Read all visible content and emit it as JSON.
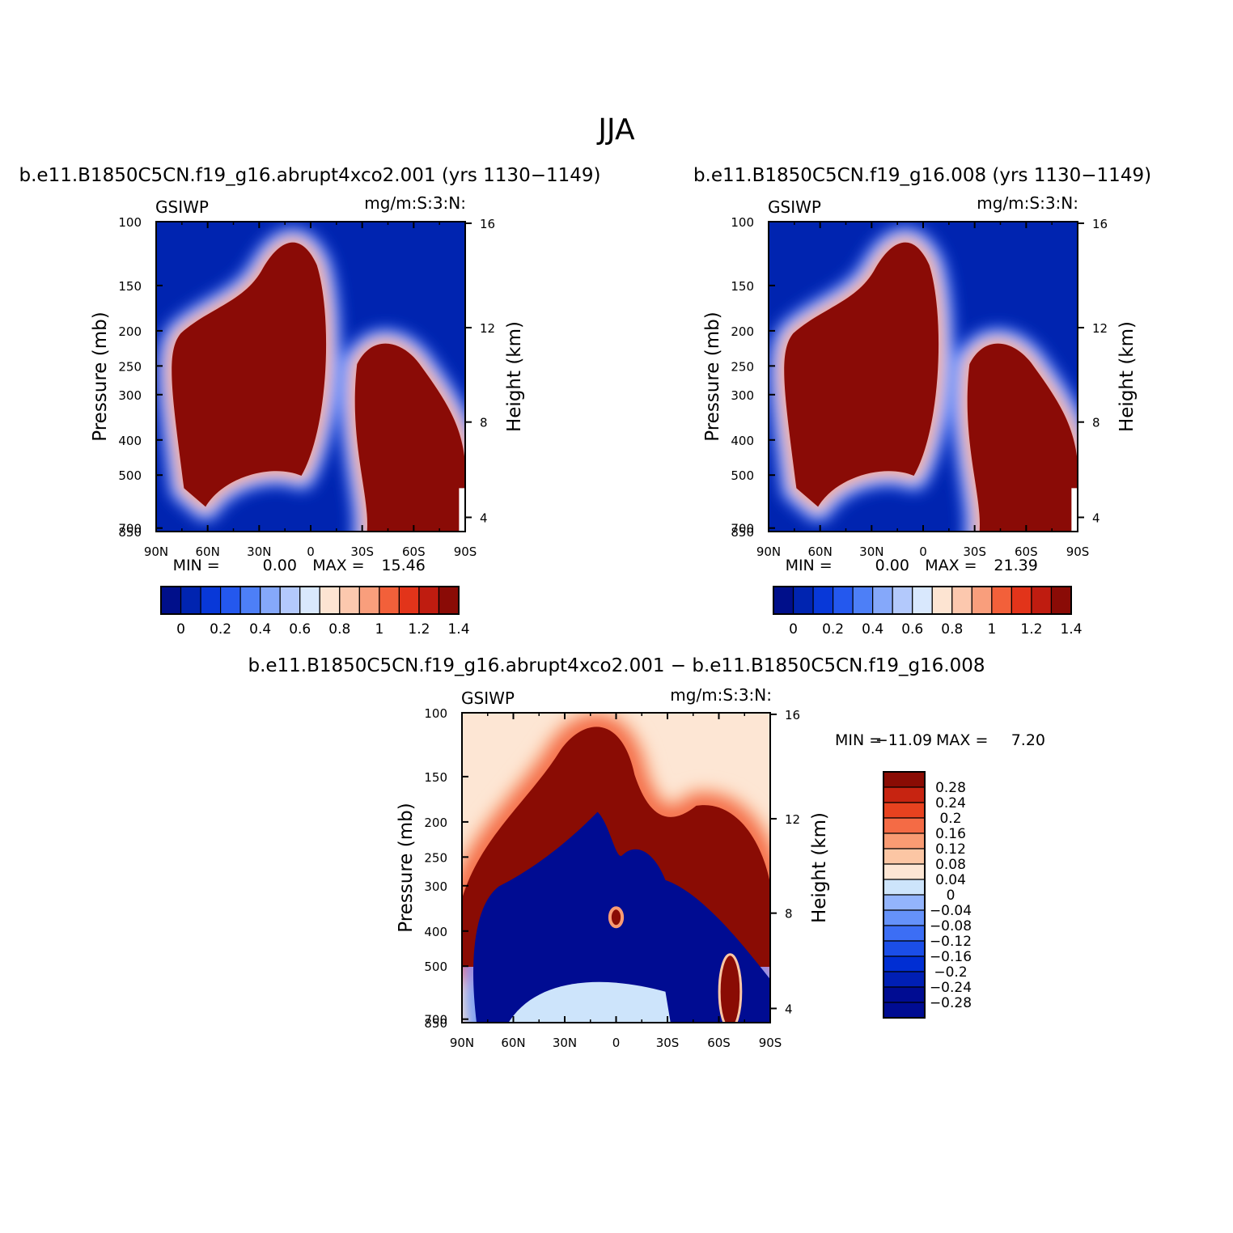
{
  "figure": {
    "main_title": "JJA",
    "variable": "GSIWP",
    "units": "mg/m:S:3:N:",
    "pressure_axis_label": "Pressure (mb)",
    "height_axis_label": "Height (km)",
    "min_label": "MIN =",
    "max_label": "MAX ="
  },
  "colors": {
    "abs_palette": [
      "#000f8a",
      "#0024b0",
      "#0838d8",
      "#2458ee",
      "#4d7ff7",
      "#85a8fa",
      "#b3c9fc",
      "#d9e8fd",
      "#fde4d2",
      "#fcc8ae",
      "#f99e7c",
      "#f2603a",
      "#e2341a",
      "#bf1c10",
      "#8a0b06"
    ],
    "diff_palette": [
      "#000c92",
      "#001fb4",
      "#002ed3",
      "#1b4ee8",
      "#3c6ef5",
      "#6592fa",
      "#93b4fc",
      "#cde4fb",
      "#fde6d4",
      "#fcc6a4",
      "#f99b73",
      "#f46b45",
      "#e8421f",
      "#c72411",
      "#8a0c04"
    ]
  },
  "chart_data": [
    {
      "type": "heatmap",
      "title": "b.e11.B1850C5CN.f19_g16.abrupt4xco2.001 (yrs 1130−1149)",
      "x_ticks": [
        "90N",
        "60N",
        "30N",
        "0",
        "30S",
        "60S",
        "90S"
      ],
      "x_range": [
        90,
        -90
      ],
      "y_ticks": [
        100,
        150,
        200,
        250,
        300,
        400,
        500,
        700,
        850
      ],
      "y_range": [
        100,
        1000
      ],
      "y_scale": "log",
      "right_axis_ticks": [
        16,
        12,
        8,
        4
      ],
      "min": "0.00",
      "max": "15.46",
      "colorbar_levels": [
        "0",
        "0.2",
        "0.4",
        "0.6",
        "0.8",
        "1",
        "1.2",
        "1.4"
      ],
      "colorbar_orientation": "horizontal"
    },
    {
      "type": "heatmap",
      "title": "b.e11.B1850C5CN.f19_g16.008 (yrs 1130−1149)",
      "x_ticks": [
        "90N",
        "60N",
        "30N",
        "0",
        "30S",
        "60S",
        "90S"
      ],
      "x_range": [
        90,
        -90
      ],
      "y_ticks": [
        100,
        150,
        200,
        250,
        300,
        400,
        500,
        700,
        850
      ],
      "y_range": [
        100,
        1000
      ],
      "y_scale": "log",
      "right_axis_ticks": [
        16,
        12,
        8,
        4
      ],
      "min": "0.00",
      "max": "21.39",
      "colorbar_levels": [
        "0",
        "0.2",
        "0.4",
        "0.6",
        "0.8",
        "1",
        "1.2",
        "1.4"
      ],
      "colorbar_orientation": "horizontal"
    },
    {
      "type": "heatmap",
      "title": "b.e11.B1850C5CN.f19_g16.abrupt4xco2.001 − b.e11.B1850C5CN.f19_g16.008",
      "x_ticks": [
        "90N",
        "60N",
        "30N",
        "0",
        "30S",
        "60S",
        "90S"
      ],
      "x_range": [
        90,
        -90
      ],
      "y_ticks": [
        100,
        150,
        200,
        250,
        300,
        400,
        500,
        700,
        850
      ],
      "y_range": [
        100,
        1000
      ],
      "y_scale": "log",
      "right_axis_ticks": [
        16,
        12,
        8,
        4
      ],
      "min": "−11.09",
      "max": "7.20",
      "colorbar_levels": [
        "0.28",
        "0.24",
        "0.2",
        "0.16",
        "0.12",
        "0.08",
        "0.04",
        "0",
        "−0.04",
        "−0.08",
        "−0.12",
        "−0.16",
        "−0.2",
        "−0.24",
        "−0.28"
      ],
      "colorbar_orientation": "vertical"
    }
  ]
}
